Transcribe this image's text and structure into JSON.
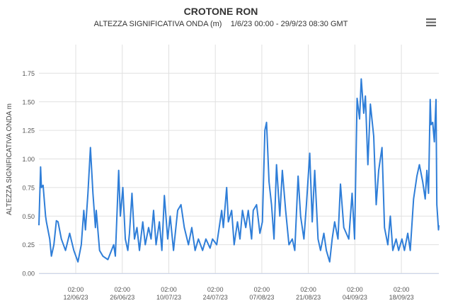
{
  "chart_data": {
    "type": "line",
    "title": "CROTONE RON",
    "subtitle": "ALTEZZA SIGNIFICATIVA ONDA (m)    1/6/23 00:00 - 29/9/23 08:30 GMT",
    "y_axis_label": "ALTEZZA SIGNIFICATIVA ONDA m",
    "grid": true,
    "xlim": [
      "2023-06-01 00:00",
      "2023-09-29 08:30"
    ],
    "ylim": [
      0,
      2
    ],
    "yticks": [
      {
        "value": 0,
        "label": "0.00"
      },
      {
        "value": 0.25,
        "label": "0.25"
      },
      {
        "value": 0.5,
        "label": "0.50"
      },
      {
        "value": 0.75,
        "label": "0.75"
      },
      {
        "value": 1,
        "label": "1.00"
      },
      {
        "value": 1.25,
        "label": "1.25"
      },
      {
        "value": 1.5,
        "label": "1.50"
      },
      {
        "value": 1.75,
        "label": "1.75"
      }
    ],
    "xticks": [
      {
        "value": "2023-06-12 02:00",
        "label": [
          "02:00",
          "12/06/23"
        ]
      },
      {
        "value": "2023-06-26 02:00",
        "label": [
          "02:00",
          "26/06/23"
        ]
      },
      {
        "value": "2023-07-10 02:00",
        "label": [
          "02:00",
          "10/07/23"
        ]
      },
      {
        "value": "2023-07-24 02:00",
        "label": [
          "02:00",
          "24/07/23"
        ]
      },
      {
        "value": "2023-08-07 02:00",
        "label": [
          "02:00",
          "07/08/23"
        ]
      },
      {
        "value": "2023-08-21 02:00",
        "label": [
          "02:00",
          "21/08/23"
        ]
      },
      {
        "value": "2023-09-04 02:00",
        "label": [
          "02:00",
          "04/09/23"
        ]
      },
      {
        "value": "2023-09-18 02:00",
        "label": [
          "02:00",
          "18/09/23"
        ]
      }
    ],
    "x": [
      "2023-06-01 00:00",
      "2023-06-01 12:00",
      "2023-06-01 18:00",
      "2023-06-02 06:00",
      "2023-06-03 00:00",
      "2023-06-03 06:00",
      "2023-06-04 06:00",
      "2023-06-04 18:00",
      "2023-06-05 12:00",
      "2023-06-06 06:00",
      "2023-06-06 18:00",
      "2023-06-07 18:00",
      "2023-06-09 00:00",
      "2023-06-10 06:00",
      "2023-06-11 12:00",
      "2023-06-12 18:00",
      "2023-06-13 18:00",
      "2023-06-14 12:00",
      "2023-06-15 00:00",
      "2023-06-15 18:00",
      "2023-06-16 12:00",
      "2023-06-17 06:00",
      "2023-06-18 00:00",
      "2023-06-18 06:00",
      "2023-06-19 06:00",
      "2023-06-20 06:00",
      "2023-06-21 18:00",
      "2023-06-23 12:00",
      "2023-06-24 00:00",
      "2023-06-25 00:00",
      "2023-06-25 12:00",
      "2023-06-26 06:00",
      "2023-06-27 00:00",
      "2023-06-27 18:00",
      "2023-06-28 06:00",
      "2023-06-29 00:00",
      "2023-06-29 18:00",
      "2023-06-30 12:00",
      "2023-07-01 06:00",
      "2023-07-02 06:00",
      "2023-07-03 00:00",
      "2023-07-04 00:00",
      "2023-07-04 18:00",
      "2023-07-05 12:00",
      "2023-07-06 06:00",
      "2023-07-07 06:00",
      "2023-07-08 00:00",
      "2023-07-08 18:00",
      "2023-07-09 18:00",
      "2023-07-10 12:00",
      "2023-07-11 12:00",
      "2023-07-12 18:00",
      "2023-07-13 18:00",
      "2023-07-14 18:00",
      "2023-07-16 00:00",
      "2023-07-17 00:00",
      "2023-07-18 00:00",
      "2023-07-19 00:00",
      "2023-07-20 06:00",
      "2023-07-21 06:00",
      "2023-07-22 12:00",
      "2023-07-23 06:00",
      "2023-07-24 12:00",
      "2023-07-26 00:00",
      "2023-07-26 12:00",
      "2023-07-27 12:00",
      "2023-07-28 00:00",
      "2023-07-29 00:00",
      "2023-07-29 18:00",
      "2023-07-30 18:00",
      "2023-07-31 12:00",
      "2023-08-01 06:00",
      "2023-08-02 06:00",
      "2023-08-03 00:00",
      "2023-08-04 00:00",
      "2023-08-04 12:00",
      "2023-08-05 12:00",
      "2023-08-06 12:00",
      "2023-08-07 06:00",
      "2023-08-08 00:00",
      "2023-08-08 12:00",
      "2023-08-09 06:00",
      "2023-08-10 00:00",
      "2023-08-10 18:00",
      "2023-08-11 12:00",
      "2023-08-12 12:00",
      "2023-08-13 06:00",
      "2023-08-14 06:00",
      "2023-08-15 06:00",
      "2023-08-16 06:00",
      "2023-08-17 00:00",
      "2023-08-18 00:00",
      "2023-08-18 18:00",
      "2023-08-19 18:00",
      "2023-08-20 12:00",
      "2023-08-21 12:00",
      "2023-08-22 06:00",
      "2023-08-23 00:00",
      "2023-08-24 00:00",
      "2023-08-24 18:00",
      "2023-08-25 18:00",
      "2023-08-26 12:00",
      "2023-08-27 12:00",
      "2023-08-28 06:00",
      "2023-08-29 00:00",
      "2023-08-30 00:00",
      "2023-08-30 18:00",
      "2023-08-31 18:00",
      "2023-09-01 12:00",
      "2023-09-02 06:00",
      "2023-09-03 06:00",
      "2023-09-04 00:00",
      "2023-09-04 18:00",
      "2023-09-05 12:00",
      "2023-09-06 00:00",
      "2023-09-06 18:00",
      "2023-09-07 06:00",
      "2023-09-08 00:00",
      "2023-09-08 18:00",
      "2023-09-09 18:00",
      "2023-09-10 12:00",
      "2023-09-11 06:00",
      "2023-09-12 06:00",
      "2023-09-13 00:00",
      "2023-09-14 00:00",
      "2023-09-14 18:00",
      "2023-09-15 12:00",
      "2023-09-16 12:00",
      "2023-09-17 06:00",
      "2023-09-18 06:00",
      "2023-09-19 00:00",
      "2023-09-20 00:00",
      "2023-09-20 18:00",
      "2023-09-21 18:00",
      "2023-09-22 18:00",
      "2023-09-23 12:00",
      "2023-09-24 12:00",
      "2023-09-25 06:00",
      "2023-09-25 18:00",
      "2023-09-26 06:00",
      "2023-09-26 18:00",
      "2023-09-27 00:00",
      "2023-09-27 12:00",
      "2023-09-28 00:00",
      "2023-09-28 12:00",
      "2023-09-28 18:00",
      "2023-09-29 06:00",
      "2023-09-29 08:30"
    ],
    "series": [
      {
        "name": "ALTEZZA SIGNIFICATIVA ONDA",
        "color": "#2f7ed8",
        "values": [
          0.42,
          0.93,
          0.75,
          0.77,
          0.5,
          0.45,
          0.3,
          0.15,
          0.25,
          0.46,
          0.45,
          0.3,
          0.2,
          0.35,
          0.2,
          0.1,
          0.25,
          0.55,
          0.38,
          0.7,
          1.1,
          0.7,
          0.4,
          0.55,
          0.2,
          0.15,
          0.12,
          0.25,
          0.15,
          0.9,
          0.5,
          0.75,
          0.3,
          0.2,
          0.35,
          0.7,
          0.3,
          0.4,
          0.2,
          0.45,
          0.25,
          0.4,
          0.3,
          0.55,
          0.25,
          0.45,
          0.2,
          0.68,
          0.3,
          0.5,
          0.2,
          0.55,
          0.6,
          0.4,
          0.25,
          0.4,
          0.2,
          0.3,
          0.2,
          0.3,
          0.22,
          0.3,
          0.25,
          0.55,
          0.4,
          0.75,
          0.45,
          0.55,
          0.25,
          0.45,
          0.3,
          0.55,
          0.4,
          0.55,
          0.3,
          0.55,
          0.6,
          0.35,
          0.45,
          1.25,
          1.32,
          0.8,
          0.6,
          0.3,
          0.95,
          0.5,
          0.9,
          0.55,
          0.25,
          0.3,
          0.2,
          0.85,
          0.5,
          0.3,
          0.6,
          1.05,
          0.45,
          0.9,
          0.3,
          0.2,
          0.35,
          0.2,
          0.1,
          0.3,
          0.45,
          0.3,
          0.78,
          0.4,
          0.35,
          0.3,
          0.7,
          0.3,
          1.53,
          1.35,
          1.7,
          1.4,
          1.55,
          0.95,
          1.48,
          1.2,
          0.6,
          0.9,
          1.1,
          0.4,
          0.25,
          0.5,
          0.2,
          0.3,
          0.2,
          0.3,
          0.2,
          0.35,
          0.2,
          0.65,
          0.85,
          0.95,
          0.8,
          0.65,
          0.9,
          0.7,
          1.52,
          1.3,
          1.32,
          1.15,
          1.52,
          0.6,
          0.38,
          0.42
        ]
      }
    ]
  }
}
